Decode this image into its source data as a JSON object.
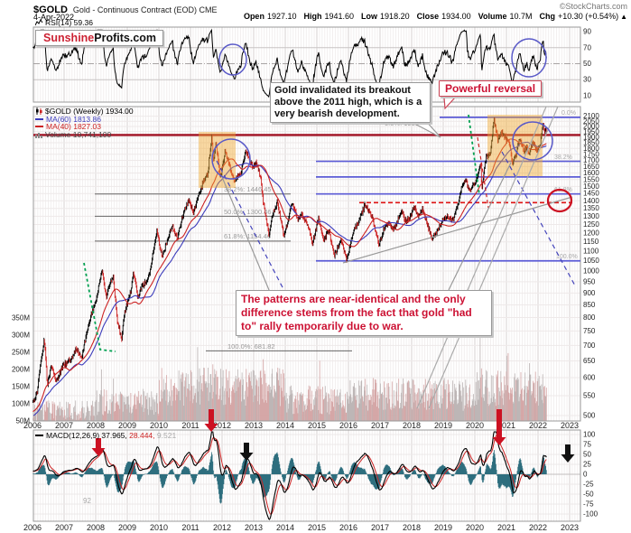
{
  "header": {
    "symbol": "$GOLD",
    "name": "Gold - Continuous Contract (EOD) CME",
    "credit": "©StockCharts.com",
    "date": "4-Apr-2022",
    "quote": [
      {
        "label": "Open",
        "value": "1927.10"
      },
      {
        "label": "High",
        "value": "1941.60"
      },
      {
        "label": "Low",
        "value": "1918.20"
      },
      {
        "label": "Close",
        "value": "1934.00"
      },
      {
        "label": "Volume",
        "value": "10.7M"
      },
      {
        "label": "Chg",
        "value": "+10.30 (+0.54%)"
      }
    ],
    "chg_arrow": "▲"
  },
  "logo": {
    "red": "Sunshine",
    "black": "Profits.com"
  },
  "callouts": {
    "breakout": "Gold invalidated its breakout above the 2011 high, which is a very bearish development.",
    "reversal": "Powerful reversal",
    "patterns": "The patterns are near-identical and the only difference stems from the fact that gold \"had to\" rally temporarily due to war."
  },
  "legends": {
    "rsi": "RSI(14) 59.36",
    "price": "$GOLD (Weekly) 1934.00",
    "ma60": "MA(60) 1813.86",
    "ma40": "MA(40) 1827.03",
    "volume": "Volume 10,741,100",
    "macd": "MACD(12,26,9) 37.965,",
    "macd_signal": "28.444,",
    "macd_hist": "9.521"
  },
  "watermark": "92",
  "colors": {
    "ma40": "#cc2222",
    "ma60": "#3b3bbb",
    "hist": "#2e6e7e",
    "annotation_red": "#cc1122",
    "annotation_blue": "#5a5ac8",
    "fib_blue": "#5b5bd6",
    "level_red": "#a01022"
  },
  "chart_data": {
    "type": "candlestick",
    "symbol": "$GOLD",
    "interval": "weekly",
    "scale": "log",
    "title": "Gold - Continuous Contract (EOD) CME",
    "x_years": [
      2006,
      2007,
      2008,
      2009,
      2010,
      2011,
      2012,
      2013,
      2014,
      2015,
      2016,
      2017,
      2018,
      2019,
      2020,
      2021,
      2022,
      2023
    ],
    "price_ticks": [
      2100,
      2050,
      2000,
      1950,
      1900,
      1850,
      1800,
      1750,
      1700,
      1650,
      1600,
      1550,
      1500,
      1450,
      1400,
      1350,
      1300,
      1250,
      1200,
      1150,
      1100,
      1050,
      1000,
      950,
      900,
      850,
      800,
      750,
      700,
      650,
      600,
      550,
      500
    ],
    "volume_ticks": [
      {
        "label": "350M",
        "value": 350
      },
      {
        "label": "300M",
        "value": 300
      },
      {
        "label": "250M",
        "value": 250
      },
      {
        "label": "200M",
        "value": 200
      },
      {
        "label": "150M",
        "value": 150
      },
      {
        "label": "100M",
        "value": 100
      },
      {
        "label": "50M",
        "value": 50
      }
    ],
    "rsi_ticks": [
      90,
      70,
      50,
      30,
      10
    ],
    "macd_ticks": [
      100,
      75,
      50,
      25,
      0,
      -25,
      -50,
      -75,
      -100
    ],
    "fib_left": {
      "high": 1919.09,
      "low": 681.82,
      "levels": [
        {
          "pct": "0.0%",
          "price": 1919.09
        },
        {
          "pct": "38.2%",
          "price": 1446.45
        },
        {
          "pct": "50.0%",
          "price": 1300.46
        },
        {
          "pct": "61.8%",
          "price": 1154.46
        },
        {
          "pct": "100.0%",
          "price": 681.82
        }
      ]
    },
    "fib_right": {
      "levels": [
        {
          "pct": "0.0%",
          "price": 2089
        },
        {
          "pct": "38.2%",
          "price": 1692
        },
        {
          "pct": "50.0%",
          "price": 1570
        },
        {
          "pct": "61.8%",
          "price": 1447
        },
        {
          "pct": "100.0%",
          "price": 1050
        }
      ]
    },
    "war_target_level": 1400,
    "volume_spikes": [
      [
        2011.7,
        215
      ],
      [
        2013.3,
        230
      ],
      [
        2020.17,
        315
      ],
      [
        2021.02,
        240
      ]
    ],
    "price_anchors": [
      [
        2006.0,
        530
      ],
      [
        2006.15,
        560
      ],
      [
        2006.37,
        725
      ],
      [
        2006.47,
        580
      ],
      [
        2006.6,
        635
      ],
      [
        2006.75,
        585
      ],
      [
        2006.95,
        635
      ],
      [
        2007.2,
        655
      ],
      [
        2007.4,
        690
      ],
      [
        2007.55,
        655
      ],
      [
        2007.8,
        790
      ],
      [
        2008.0,
        860
      ],
      [
        2008.2,
        1005
      ],
      [
        2008.33,
        885
      ],
      [
        2008.55,
        978
      ],
      [
        2008.68,
        790
      ],
      [
        2008.82,
        720
      ],
      [
        2008.92,
        820
      ],
      [
        2009.1,
        900
      ],
      [
        2009.2,
        995
      ],
      [
        2009.33,
        875
      ],
      [
        2009.45,
        930
      ],
      [
        2009.6,
        950
      ],
      [
        2009.73,
        1000
      ],
      [
        2009.93,
        1210
      ],
      [
        2010.1,
        1070
      ],
      [
        2010.35,
        1200
      ],
      [
        2010.42,
        1245
      ],
      [
        2010.58,
        1170
      ],
      [
        2010.75,
        1300
      ],
      [
        2010.95,
        1420
      ],
      [
        2011.08,
        1320
      ],
      [
        2011.35,
        1500
      ],
      [
        2011.55,
        1600
      ],
      [
        2011.67,
        1900
      ],
      [
        2011.73,
        1705
      ],
      [
        2011.8,
        1850
      ],
      [
        2011.95,
        1560
      ],
      [
        2012.1,
        1780
      ],
      [
        2012.25,
        1640
      ],
      [
        2012.38,
        1540
      ],
      [
        2012.6,
        1600
      ],
      [
        2012.75,
        1790
      ],
      [
        2012.95,
        1650
      ],
      [
        2013.1,
        1680
      ],
      [
        2013.22,
        1560
      ],
      [
        2013.3,
        1400
      ],
      [
        2013.48,
        1190
      ],
      [
        2013.63,
        1340
      ],
      [
        2013.75,
        1390
      ],
      [
        2013.95,
        1190
      ],
      [
        2014.05,
        1240
      ],
      [
        2014.2,
        1390
      ],
      [
        2014.4,
        1280
      ],
      [
        2014.52,
        1320
      ],
      [
        2014.75,
        1220
      ],
      [
        2014.85,
        1140
      ],
      [
        2014.95,
        1200
      ],
      [
        2015.05,
        1290
      ],
      [
        2015.22,
        1150
      ],
      [
        2015.38,
        1220
      ],
      [
        2015.55,
        1080
      ],
      [
        2015.78,
        1160
      ],
      [
        2015.95,
        1050
      ],
      [
        2016.1,
        1180
      ],
      [
        2016.3,
        1260
      ],
      [
        2016.52,
        1370
      ],
      [
        2016.72,
        1310
      ],
      [
        2016.85,
        1220
      ],
      [
        2016.97,
        1130
      ],
      [
        2017.12,
        1230
      ],
      [
        2017.3,
        1255
      ],
      [
        2017.42,
        1215
      ],
      [
        2017.55,
        1270
      ],
      [
        2017.68,
        1345
      ],
      [
        2017.8,
        1270
      ],
      [
        2017.97,
        1300
      ],
      [
        2018.08,
        1360
      ],
      [
        2018.22,
        1305
      ],
      [
        2018.35,
        1350
      ],
      [
        2018.5,
        1250
      ],
      [
        2018.65,
        1160
      ],
      [
        2018.85,
        1230
      ],
      [
        2018.98,
        1280
      ],
      [
        2019.15,
        1300
      ],
      [
        2019.3,
        1270
      ],
      [
        2019.42,
        1340
      ],
      [
        2019.6,
        1510
      ],
      [
        2019.7,
        1550
      ],
      [
        2019.85,
        1460
      ],
      [
        2019.98,
        1520
      ],
      [
        2020.1,
        1590
      ],
      [
        2020.18,
        1680
      ],
      [
        2020.22,
        1480
      ],
      [
        2020.35,
        1720
      ],
      [
        2020.5,
        1770
      ],
      [
        2020.6,
        2070
      ],
      [
        2020.73,
        1870
      ],
      [
        2020.85,
        1950
      ],
      [
        2020.98,
        1890
      ],
      [
        2021.1,
        1830
      ],
      [
        2021.18,
        1680
      ],
      [
        2021.3,
        1740
      ],
      [
        2021.42,
        1900
      ],
      [
        2021.55,
        1770
      ],
      [
        2021.65,
        1815
      ],
      [
        2021.73,
        1750
      ],
      [
        2021.85,
        1865
      ],
      [
        2021.95,
        1780
      ],
      [
        2022.02,
        1800
      ],
      [
        2022.08,
        1850
      ],
      [
        2022.16,
        2050
      ],
      [
        2022.2,
        1925
      ],
      [
        2022.24,
        1960
      ],
      [
        2022.27,
        1934
      ]
    ],
    "last": {
      "close": 1934.0,
      "ma40": 1827.03,
      "ma60": 1813.86,
      "rsi": 59.36,
      "macd": [
        37.965,
        28.444,
        9.521
      ],
      "volume": "10,741,100"
    }
  }
}
